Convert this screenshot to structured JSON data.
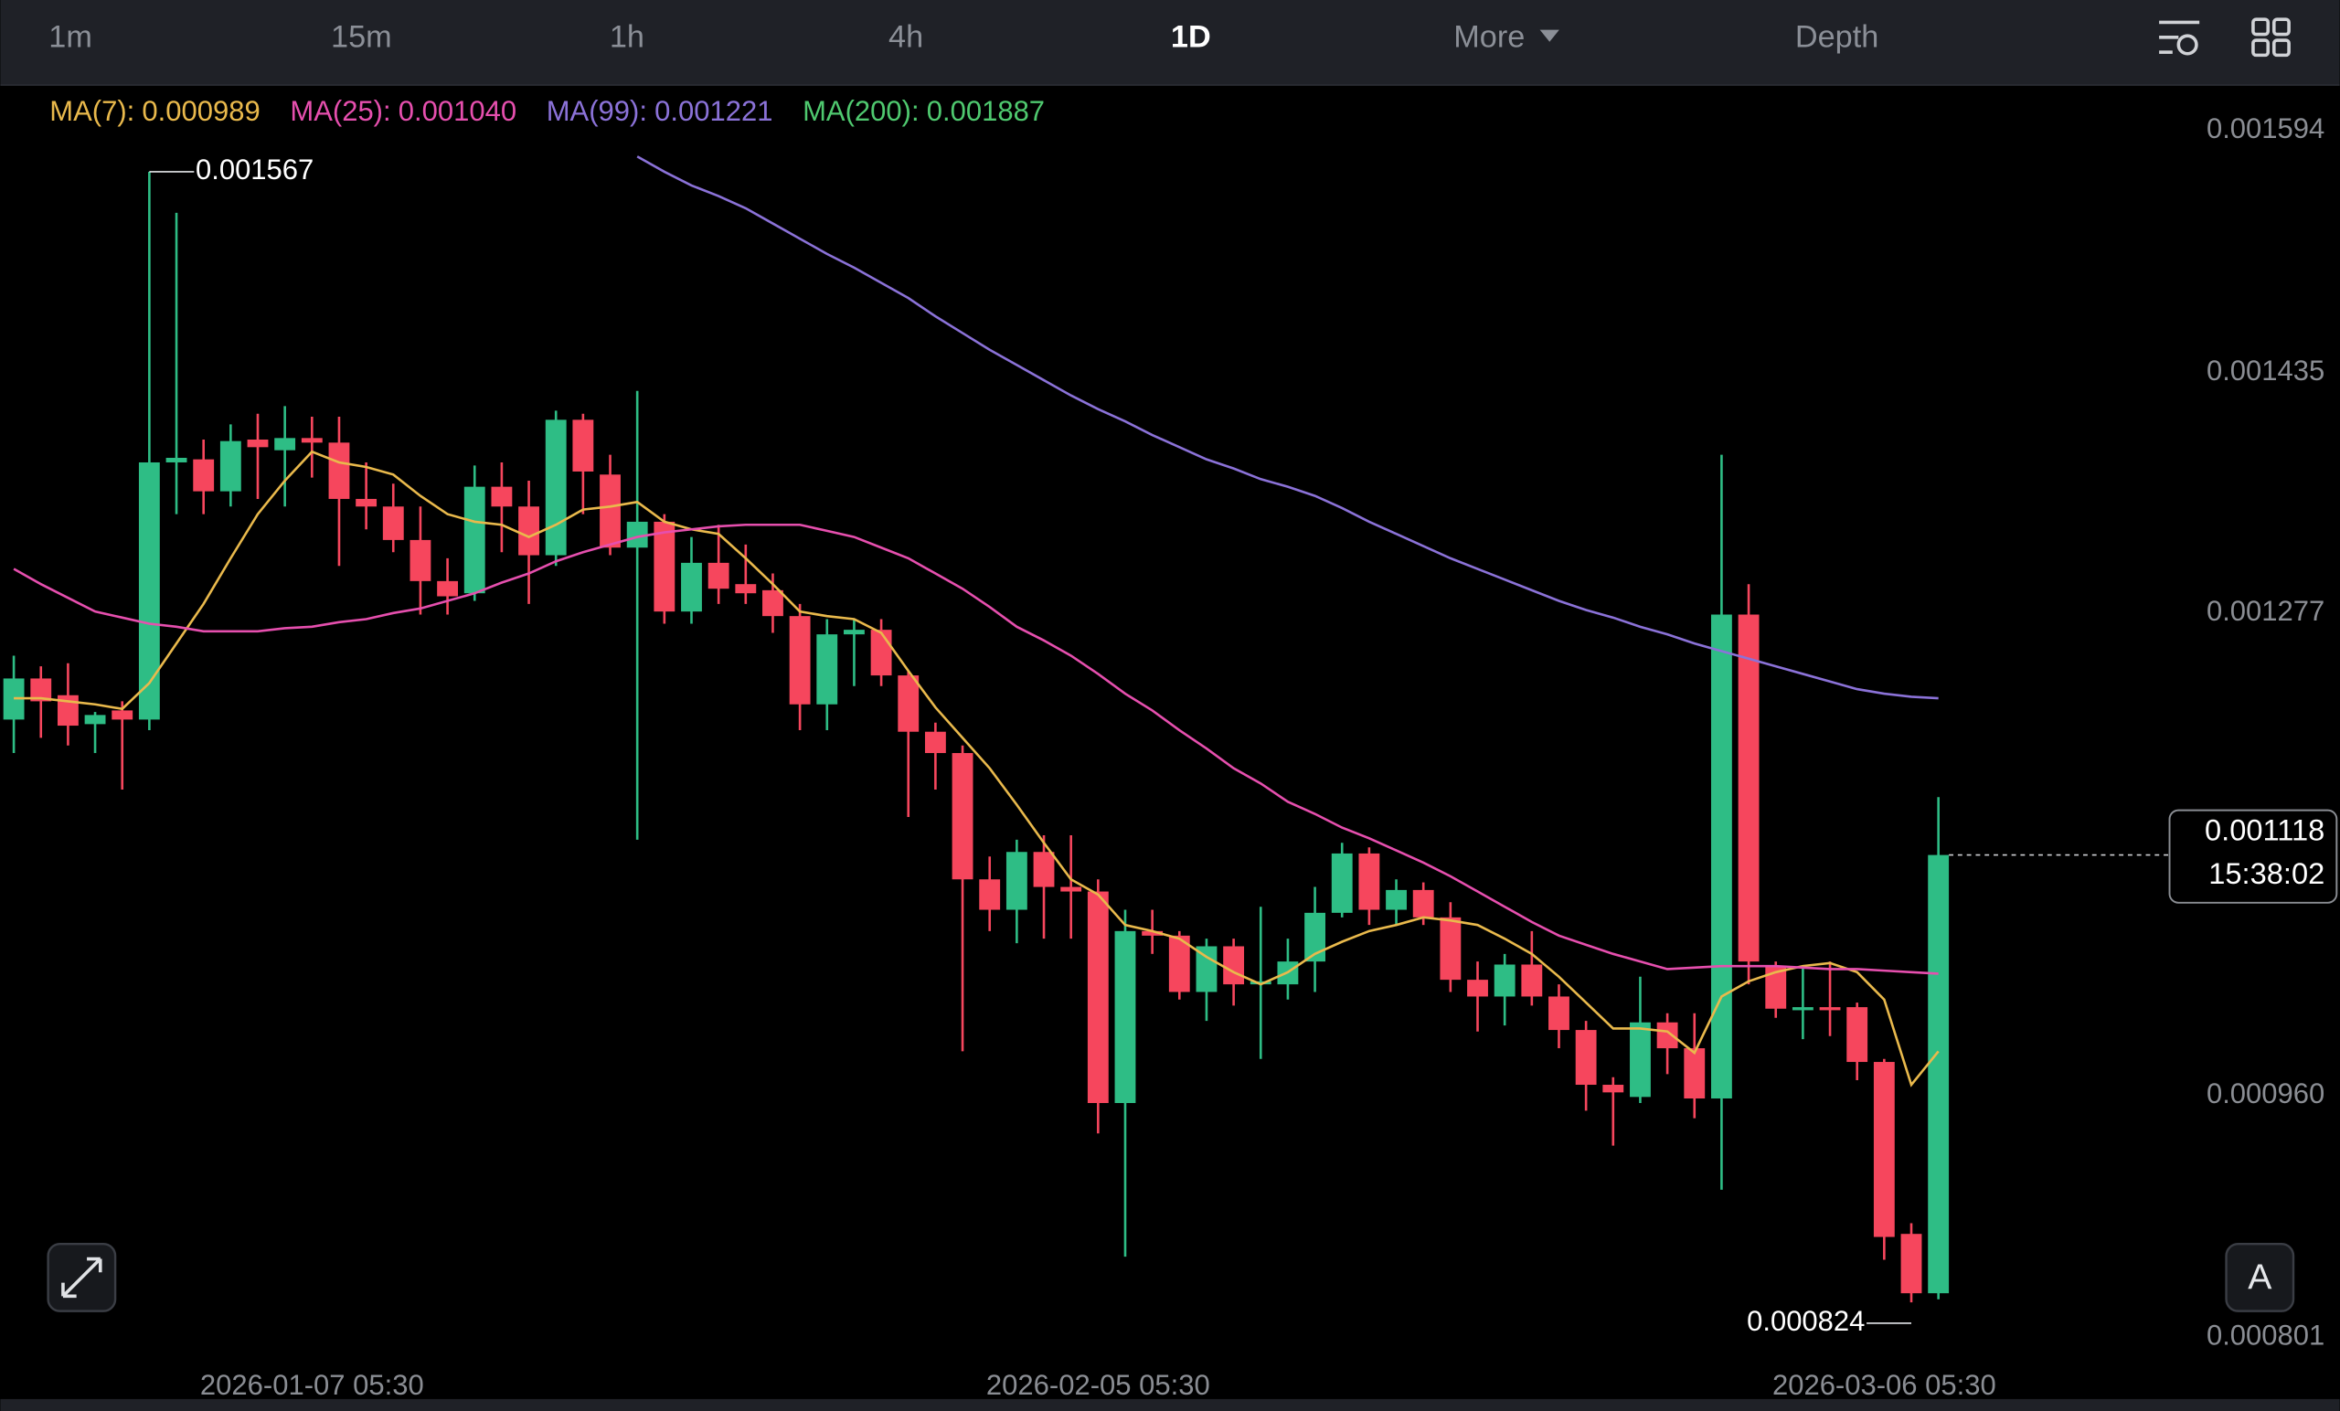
{
  "toolbar": {
    "intervals": [
      "1m",
      "15m",
      "1h",
      "4h",
      "1D",
      "More",
      "Depth"
    ],
    "active": "1D"
  },
  "chart_data": {
    "type": "candlestick",
    "categories": [
      null,
      null,
      null,
      null,
      null,
      null,
      null,
      null,
      null,
      null,
      null,
      "2026-01-07 05:30",
      null,
      null,
      null,
      null,
      null,
      null,
      null,
      null,
      null,
      null,
      null,
      null,
      null,
      null,
      null,
      null,
      null,
      null,
      null,
      null,
      null,
      null,
      null,
      null,
      null,
      null,
      null,
      null,
      "2026-02-05 05:30",
      null,
      null,
      null,
      null,
      null,
      null,
      null,
      null,
      null,
      null,
      null,
      null,
      null,
      null,
      null,
      null,
      null,
      null,
      null,
      null,
      null,
      null,
      null,
      null,
      null,
      null,
      null,
      null,
      "2026-03-06 05:30",
      null,
      null
    ],
    "open": [
      0.001207,
      0.001234,
      0.001223,
      0.001204,
      0.001213,
      0.001207,
      0.001376,
      0.001378,
      0.001357,
      0.001391,
      0.001384,
      0.001392,
      0.001389,
      0.001352,
      0.001347,
      0.001325,
      0.001298,
      0.00129,
      0.00136,
      0.001347,
      0.001315,
      0.001404,
      0.001368,
      0.00132,
      0.001337,
      0.001278,
      0.00131,
      0.001296,
      0.001292,
      0.001275,
      0.001217,
      0.001263,
      0.001266,
      0.001236,
      0.001199,
      0.001185,
      0.001102,
      0.001082,
      0.00112,
      0.001097,
      0.001094,
      0.000955,
      0.001068,
      0.001065,
      0.001028,
      0.001058,
      0.001033,
      0.001033,
      0.001048,
      0.00108,
      0.001119,
      0.001082,
      0.001095,
      0.001077,
      0.001036,
      0.001025,
      0.001046,
      0.001025,
      0.001003,
      0.000967,
      0.000959,
      0.001008,
      0.000991,
      0.000958,
      0.001276,
      0.001045,
      0.001016,
      0.001018,
      0.001018,
      0.000982,
      0.000869,
      0.00083
    ],
    "high": [
      0.001249,
      0.001242,
      0.001244,
      0.001212,
      0.001219,
      0.001567,
      0.00154,
      0.001391,
      0.001401,
      0.001408,
      0.001413,
      0.001406,
      0.001406,
      0.001376,
      0.001362,
      0.001347,
      0.001313,
      0.001374,
      0.001376,
      0.001364,
      0.00141,
      0.001408,
      0.001381,
      0.001423,
      0.001342,
      0.001327,
      0.001335,
      0.001322,
      0.001303,
      0.001283,
      0.001273,
      0.001273,
      0.001273,
      0.001239,
      0.001205,
      0.00119,
      0.001117,
      0.001128,
      0.001131,
      0.001131,
      0.001102,
      0.001082,
      0.001082,
      0.001068,
      0.001063,
      0.001063,
      0.001084,
      0.001063,
      0.001097,
      0.001126,
      0.001123,
      0.001102,
      0.0011,
      0.001087,
      0.001048,
      0.001053,
      0.001068,
      0.001033,
      0.001009,
      0.000972,
      0.001038,
      0.001014,
      0.001014,
      0.001381,
      0.001296,
      0.001048,
      0.001045,
      0.001048,
      0.001021,
      0.000984,
      0.000876,
      0.001156
    ],
    "low": [
      0.001185,
      0.001195,
      0.00119,
      0.001185,
      0.001161,
      0.0012,
      0.001342,
      0.001342,
      0.001347,
      0.001352,
      0.001347,
      0.001366,
      0.001308,
      0.001332,
      0.001317,
      0.001276,
      0.001276,
      0.001285,
      0.001317,
      0.001283,
      0.001308,
      0.001342,
      0.001315,
      0.001128,
      0.00127,
      0.00127,
      0.001283,
      0.001283,
      0.001264,
      0.0012,
      0.0012,
      0.001229,
      0.001229,
      0.001143,
      0.001161,
      0.000989,
      0.001068,
      0.00106,
      0.001063,
      0.001063,
      0.000935,
      0.000854,
      0.001053,
      0.001023,
      0.001009,
      0.001019,
      0.000984,
      0.001023,
      0.001028,
      0.001077,
      0.001072,
      0.001072,
      0.001072,
      0.001028,
      0.001002,
      0.001006,
      0.001019,
      0.000991,
      0.00095,
      0.000927,
      0.000955,
      0.000974,
      0.000945,
      0.000898,
      0.001033,
      0.001011,
      0.000997,
      0.000999,
      0.00097,
      0.000852,
      0.000824,
      0.000826
    ],
    "close": [
      0.001234,
      0.001219,
      0.001203,
      0.00121,
      0.001207,
      0.001376,
      0.001379,
      0.001357,
      0.00139,
      0.001386,
      0.001392,
      0.001389,
      0.001352,
      0.001347,
      0.001325,
      0.001298,
      0.001288,
      0.00136,
      0.001347,
      0.001315,
      0.001404,
      0.00137,
      0.00132,
      0.001337,
      0.001278,
      0.00131,
      0.001293,
      0.00129,
      0.001275,
      0.001217,
      0.001263,
      0.001266,
      0.001236,
      0.001199,
      0.001185,
      0.001102,
      0.001082,
      0.00112,
      0.001097,
      0.001094,
      0.000955,
      0.001068,
      0.001065,
      0.001028,
      0.001058,
      0.001033,
      0.001035,
      0.001048,
      0.00108,
      0.001119,
      0.001082,
      0.001095,
      0.001077,
      0.001036,
      0.001025,
      0.001046,
      0.001025,
      0.001003,
      0.000967,
      0.000962,
      0.001008,
      0.000991,
      0.000958,
      0.001276,
      0.001048,
      0.001017,
      0.001018,
      0.001016,
      0.000982,
      0.000867,
      0.00083,
      0.001118
    ],
    "up_color": "#2ebd85",
    "down_color": "#f6465d",
    "series": [
      {
        "name": "MA(7):",
        "color": "#e9b94c",
        "current": 0.000989,
        "values": [
          0.001221,
          0.001221,
          0.001219,
          0.001217,
          0.001214,
          0.001231,
          0.001257,
          0.001283,
          0.001313,
          0.001342,
          0.001364,
          0.001383,
          0.001376,
          0.001373,
          0.001368,
          0.001354,
          0.001342,
          0.001337,
          0.001335,
          0.001327,
          0.001335,
          0.001345,
          0.001347,
          0.00135,
          0.001337,
          0.001332,
          0.001329,
          0.001313,
          0.001296,
          0.001278,
          0.001275,
          0.001273,
          0.001264,
          0.001239,
          0.001215,
          0.001195,
          0.001175,
          0.001151,
          0.001126,
          0.001102,
          0.001092,
          0.001072,
          0.001068,
          0.001063,
          0.001051,
          0.001041,
          0.001033,
          0.001041,
          0.001053,
          0.001061,
          0.001068,
          0.001072,
          0.001077,
          0.001075,
          0.001072,
          0.001063,
          0.001053,
          0.001038,
          0.001021,
          0.001004,
          0.001004,
          0.001002,
          0.000988,
          0.001025,
          0.001035,
          0.001041,
          0.001045,
          0.001047,
          0.001041,
          0.001023,
          0.000967,
          0.000989
        ]
      },
      {
        "name": "MA(25):",
        "color": "#e64fae",
        "current": {
          "value": 0.00104,
          "label": "0.001040"
        },
        "values": [
          0.001306,
          0.001296,
          0.001287,
          0.001278,
          0.001274,
          0.00127,
          0.001268,
          0.001265,
          0.001265,
          0.001265,
          0.001267,
          0.001268,
          0.001271,
          0.001273,
          0.001277,
          0.00128,
          0.001285,
          0.00129,
          0.001297,
          0.001303,
          0.001311,
          0.001317,
          0.001322,
          0.001327,
          0.00133,
          0.001332,
          0.001334,
          0.001335,
          0.001335,
          0.001335,
          0.001331,
          0.001327,
          0.00132,
          0.001313,
          0.001303,
          0.001293,
          0.001281,
          0.001268,
          0.001259,
          0.001249,
          0.001237,
          0.001224,
          0.001213,
          0.0012,
          0.001188,
          0.001175,
          0.001165,
          0.001153,
          0.001145,
          0.001136,
          0.001129,
          0.001121,
          0.001113,
          0.001104,
          0.001094,
          0.001084,
          0.001074,
          0.001065,
          0.001059,
          0.001053,
          0.001048,
          0.001043,
          0.001044,
          0.001045,
          0.001045,
          0.001045,
          0.001044,
          0.001043,
          0.001043,
          0.001042,
          0.001041,
          0.00104
        ]
      },
      {
        "name": "MA(99):",
        "color": "#8b72d8",
        "current": 0.001221,
        "values": [
          null,
          null,
          null,
          null,
          null,
          null,
          null,
          null,
          null,
          null,
          null,
          null,
          null,
          null,
          null,
          null,
          null,
          null,
          null,
          null,
          null,
          null,
          null,
          0.001577,
          0.001567,
          0.001558,
          0.001551,
          0.001543,
          0.001533,
          0.001523,
          0.001513,
          0.001504,
          0.001494,
          0.001484,
          0.001472,
          0.001461,
          0.00145,
          0.00144,
          0.00143,
          0.00142,
          0.001411,
          0.001403,
          0.001394,
          0.001386,
          0.001378,
          0.001372,
          0.001365,
          0.00136,
          0.001354,
          0.001346,
          0.001337,
          0.001329,
          0.001321,
          0.001313,
          0.001306,
          0.001299,
          0.001292,
          0.001285,
          0.001279,
          0.001274,
          0.001268,
          0.001263,
          0.001257,
          0.001252,
          0.001247,
          0.001242,
          0.001237,
          0.001232,
          0.001227,
          0.001224,
          0.001222,
          0.001221
        ]
      },
      {
        "name": "MA(200):",
        "color": "#4fc96f",
        "current": 0.001887
      }
    ],
    "ylim": [
      0.000783,
      0.001624
    ],
    "yticks": [
      0.001594,
      0.001435,
      0.001277,
      {
        "value": 0.00096,
        "label": "0.000960"
      },
      0.000801
    ],
    "grid": false,
    "countdown": "15:38:02",
    "auto_button": "A"
  }
}
